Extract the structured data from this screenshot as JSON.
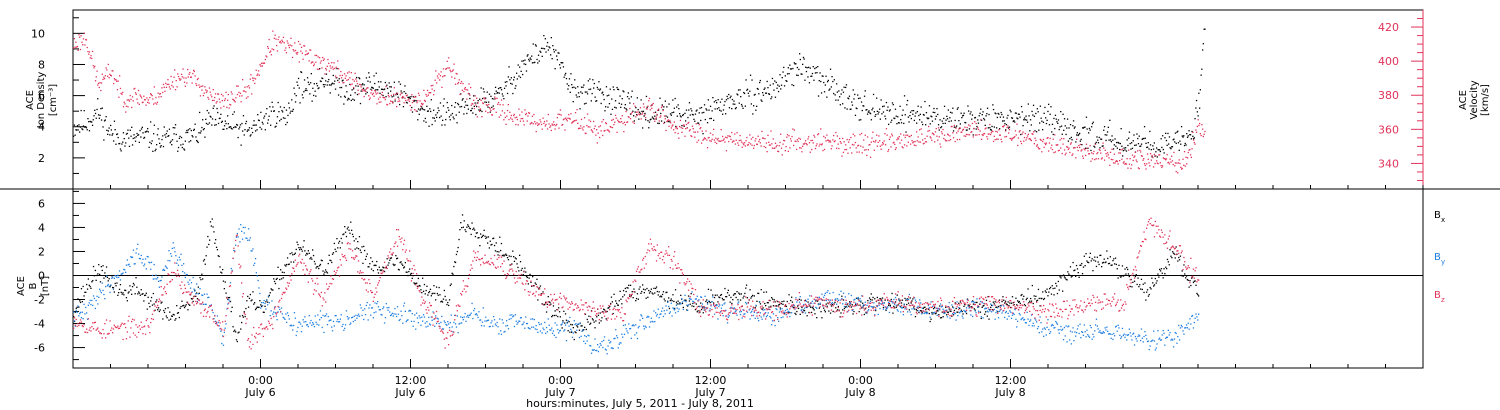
{
  "chart_data": [
    {
      "type": "scatter",
      "panel": "top",
      "ylabel_lines": [
        "ACE",
        "Ion Density",
        "[cm⁻³]"
      ],
      "ylim": [
        0,
        11.5
      ],
      "yticks": [
        2,
        4,
        6,
        8,
        10
      ],
      "y2label_lines": [
        "ACE",
        "Velocity",
        "[km/s]"
      ],
      "y2lim": [
        325,
        430
      ],
      "y2ticks": [
        340,
        360,
        380,
        400,
        420
      ],
      "y2_color": "#e0335a",
      "series": [
        {
          "name": "Ion Density",
          "color": "#000000",
          "axis": "left",
          "x": [
            0,
            1,
            2,
            3,
            4,
            5,
            6,
            7,
            8,
            9,
            10,
            11,
            12,
            14,
            16,
            17,
            18,
            19,
            20,
            22,
            24,
            26,
            28,
            30,
            32,
            34,
            36,
            38,
            40,
            42,
            44,
            46,
            48,
            50,
            52,
            54,
            56,
            58,
            60,
            62,
            64,
            66,
            68,
            70,
            72,
            74,
            76,
            78,
            80,
            82,
            84,
            86,
            88,
            89.5,
            90,
            90.5
          ],
          "y": [
            4.0,
            4.3,
            5.0,
            3.6,
            3.2,
            3.3,
            3.4,
            3.1,
            3.4,
            3.3,
            3.6,
            4.5,
            4.2,
            3.7,
            5.0,
            4.6,
            6.8,
            6.3,
            7.2,
            6.3,
            6.8,
            6.2,
            5.0,
            4.8,
            5.5,
            6.0,
            8.0,
            9.3,
            6.3,
            6.2,
            5.5,
            4.8,
            4.9,
            4.6,
            5.5,
            6.0,
            6.5,
            8.0,
            6.8,
            6.0,
            5.0,
            4.9,
            4.8,
            4.5,
            4.6,
            4.4,
            4.8,
            4.3,
            3.7,
            3.4,
            3.1,
            3.0,
            2.8,
            3.6,
            5.5,
            10.5
          ]
        },
        {
          "name": "Velocity",
          "color": "#e0335a",
          "axis": "right",
          "x": [
            0,
            1,
            2,
            3,
            4,
            5,
            6,
            7,
            8,
            9,
            10,
            11,
            12,
            14,
            16,
            18,
            20,
            22,
            24,
            26,
            28,
            30,
            32,
            34,
            36,
            38,
            40,
            42,
            44,
            46,
            48,
            50,
            52,
            54,
            56,
            58,
            60,
            62,
            64,
            66,
            68,
            70,
            72,
            74,
            76,
            78,
            80,
            82,
            84,
            86,
            88,
            89,
            90,
            90.5
          ],
          "y": [
            410,
            414,
            386,
            395,
            378,
            380,
            377,
            382,
            390,
            392,
            388,
            379,
            376,
            384,
            412,
            406,
            399,
            390,
            380,
            378,
            378,
            398,
            375,
            372,
            366,
            364,
            366,
            360,
            365,
            374,
            362,
            358,
            355,
            354,
            352,
            353,
            354,
            351,
            352,
            354,
            355,
            356,
            360,
            358,
            357,
            352,
            349,
            346,
            343,
            342,
            341,
            341,
            362,
            358
          ]
        }
      ]
    },
    {
      "type": "scatter",
      "panel": "bottom",
      "ylabel_lines": [
        "ACE",
        "B",
        "[nT]"
      ],
      "ylim": [
        -7.7,
        7.2
      ],
      "yticks": [
        -6,
        -4,
        -2,
        0,
        2,
        4,
        6
      ],
      "zero_line": true,
      "series": [
        {
          "name": "Bx",
          "color": "#000000",
          "x": [
            0,
            1,
            2,
            3,
            4,
            5,
            6,
            8,
            10,
            11,
            12,
            13,
            14,
            15,
            16,
            17,
            18,
            20,
            22,
            24,
            26,
            28,
            30,
            31,
            32,
            34,
            36,
            38,
            40,
            42,
            44,
            46,
            48,
            50,
            52,
            54,
            56,
            58,
            60,
            62,
            64,
            66,
            68,
            70,
            72,
            74,
            76,
            78,
            80,
            82,
            84,
            86,
            88,
            90
          ],
          "y": [
            -3,
            -1,
            0.5,
            -0.5,
            -1.5,
            -1,
            -2,
            -3.5,
            -1.5,
            4.5,
            0,
            -5,
            -2,
            -3,
            -1,
            1,
            2.5,
            0.5,
            3.8,
            0.8,
            1.2,
            -1,
            -2,
            4.3,
            4.0,
            2.5,
            0.5,
            -2.5,
            -4.5,
            -3.5,
            -1.5,
            -1,
            -2,
            -2.5,
            -1.5,
            -1.8,
            -2.2,
            -2.5,
            -2.8,
            -2.5,
            -2.2,
            -2.0,
            -2.8,
            -3.0,
            -2.6,
            -2.4,
            -2.0,
            -1.5,
            0.5,
            1.5,
            0.5,
            -1.5,
            2.0,
            -1.5
          ]
        },
        {
          "name": "By",
          "color": "#1f7fe0",
          "x": [
            0,
            1,
            2,
            3,
            4,
            5,
            6,
            7,
            8,
            9,
            10,
            11,
            12,
            13,
            14,
            15,
            16,
            18,
            20,
            22,
            24,
            26,
            28,
            30,
            32,
            34,
            36,
            38,
            40,
            42,
            44,
            46,
            48,
            50,
            52,
            54,
            56,
            58,
            60,
            62,
            64,
            66,
            68,
            70,
            72,
            74,
            76,
            78,
            80,
            82,
            84,
            86,
            88,
            90
          ],
          "y": [
            -3.5,
            -3,
            -1.5,
            -0.5,
            0.5,
            2,
            1,
            -0.5,
            2.5,
            0,
            -1.5,
            -2.5,
            -5.5,
            3.5,
            3.5,
            -2,
            -3,
            -4,
            -3.8,
            -3.5,
            -2.8,
            -3.2,
            -3.6,
            -4.0,
            -3.2,
            -4.2,
            -3.8,
            -4.5,
            -4.2,
            -6.2,
            -5.0,
            -3.5,
            -2.5,
            -2.0,
            -2.8,
            -3.0,
            -3.5,
            -2.5,
            -1.8,
            -2.2,
            -2.6,
            -2.4,
            -2.7,
            -3.0,
            -2.5,
            -2.8,
            -3.6,
            -4.2,
            -4.8,
            -4.5,
            -4.8,
            -5.5,
            -5.0,
            -3.5
          ]
        },
        {
          "name": "Bz",
          "color": "#e0335a",
          "x": [
            0,
            1,
            2,
            3,
            4,
            5,
            6,
            7,
            8,
            9,
            10,
            11,
            12,
            13,
            14,
            15,
            16,
            18,
            20,
            22,
            24,
            26,
            28,
            30,
            32,
            34,
            36,
            38,
            40,
            42,
            44,
            46,
            48,
            50,
            52,
            54,
            56,
            58,
            60,
            62,
            64,
            66,
            68,
            70,
            72,
            74,
            76,
            78,
            80,
            82,
            84,
            86,
            88,
            90
          ],
          "y": [
            -3.5,
            -4,
            -4.5,
            -4.5,
            -4.3,
            -4.4,
            -4.2,
            -1.5,
            0.5,
            -1.5,
            -2.5,
            -3.0,
            -4.5,
            3.5,
            -5.5,
            -4.5,
            -3.5,
            1.5,
            -2.0,
            2.5,
            -1.5,
            3.5,
            -2.0,
            -5.5,
            1.5,
            1.0,
            -0.5,
            -2.0,
            -2.5,
            -2.8,
            -3.2,
            2.5,
            1.5,
            -2.5,
            -3.0,
            -2.5,
            -2.8,
            -2.5,
            -2.2,
            -2.6,
            -2.3,
            -2.0,
            -2.5,
            -2.6,
            -2.4,
            -2.2,
            -2.6,
            -3.0,
            -2.7,
            -2.0,
            -2.5,
            4.5,
            2.5,
            -0.5
          ]
        }
      ],
      "legend": [
        {
          "main": "B",
          "sub": "x",
          "color": "#000000"
        },
        {
          "main": "B",
          "sub": "y",
          "color": "#1f7fe0"
        },
        {
          "main": "B",
          "sub": "z",
          "color": "#e0335a"
        }
      ]
    }
  ],
  "x_axis": {
    "xlim": [
      0,
      108
    ],
    "major_ticks": [
      {
        "x": 15,
        "time": "0:00",
        "date": "July 6"
      },
      {
        "x": 27,
        "time": "12:00",
        "date": "July 6"
      },
      {
        "x": 39,
        "time": "0:00",
        "date": "July 7"
      },
      {
        "x": 51,
        "time": "12:00",
        "date": "July 7"
      },
      {
        "x": 63,
        "time": "0:00",
        "date": "July 8"
      },
      {
        "x": 75,
        "time": "12:00",
        "date": "July 8"
      }
    ],
    "minor_step": 3,
    "label": "hours:minutes,  July  5, 2011 - July  8, 2011"
  }
}
